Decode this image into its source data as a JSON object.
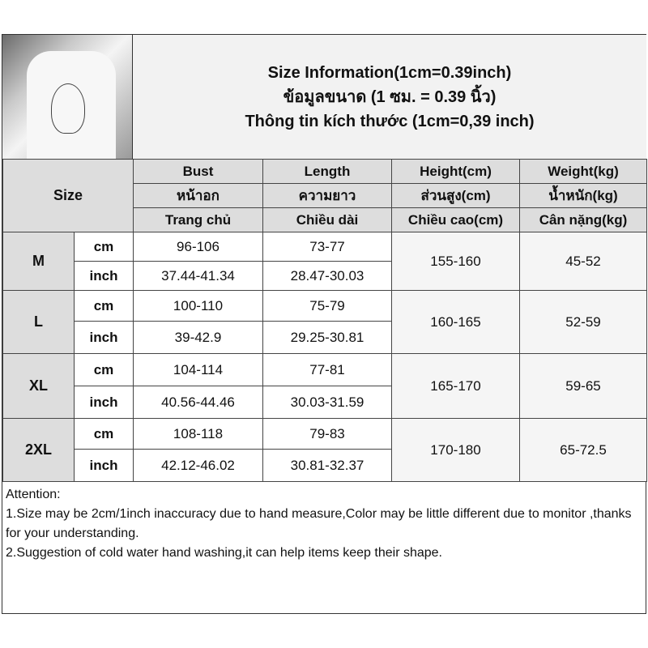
{
  "title_lines": [
    "Size Information(1cm=0.39inch)",
    "ข้อมูลขนาด (1 ซม. = 0.39 นิ้ว)",
    "Thông tin kích thước (1cm=0,39 inch)"
  ],
  "size_label": "Size",
  "columns": [
    [
      "Bust",
      "หน้าอก",
      "Trang chủ"
    ],
    [
      "Length",
      "ความยาว",
      "Chiều dài"
    ],
    [
      "Height(cm)",
      "ส่วนสูง(cm)",
      "Chiều cao(cm)"
    ],
    [
      "Weight(kg)",
      "น้ำหนัก(kg)",
      "Cân nặng(kg)"
    ]
  ],
  "units": [
    "cm",
    "inch"
  ],
  "rows": [
    {
      "size": "M",
      "cm": [
        "96-106",
        "73-77"
      ],
      "inch": [
        "37.44-41.34",
        "28.47-30.03"
      ],
      "height": "155-160",
      "weight": "45-52"
    },
    {
      "size": "L",
      "cm": [
        "100-110",
        "75-79"
      ],
      "inch": [
        "39-42.9",
        "29.25-30.81"
      ],
      "height": "160-165",
      "weight": "52-59"
    },
    {
      "size": "XL",
      "cm": [
        "104-114",
        "77-81"
      ],
      "inch": [
        "40.56-44.46",
        "30.03-31.59"
      ],
      "height": "165-170",
      "weight": "59-65"
    },
    {
      "size": "2XL",
      "cm": [
        "108-118",
        "79-83"
      ],
      "inch": [
        "42.12-46.02",
        "30.81-32.37"
      ],
      "height": "170-180",
      "weight": "65-72.5"
    }
  ],
  "attention": [
    "Attention:",
    "1.Size may be 2cm/1inch inaccuracy due to hand measure,Color may be little different due to monitor ,thanks for your understanding.",
    "2.Suggestion of cold water hand washing,it can help items keep their shape."
  ]
}
